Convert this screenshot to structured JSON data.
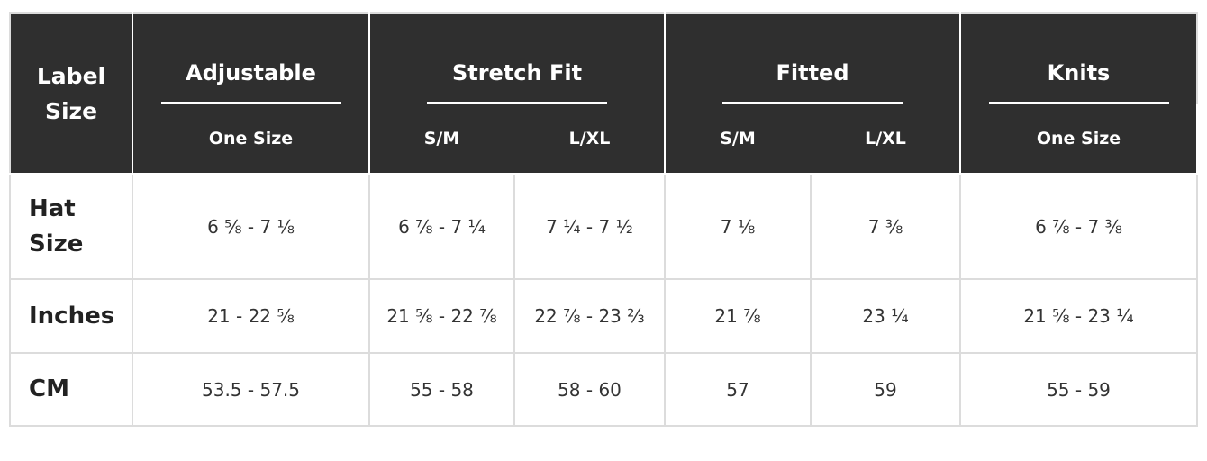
{
  "table": {
    "corner": "Label Size",
    "groups": [
      {
        "name": "Adjustable",
        "sizes": [
          "One Size"
        ]
      },
      {
        "name": "Stretch Fit",
        "sizes": [
          "S/M",
          "L/XL"
        ]
      },
      {
        "name": "Fitted",
        "sizes": [
          "S/M",
          "L/XL"
        ]
      },
      {
        "name": "Knits",
        "sizes": [
          "One Size"
        ]
      }
    ],
    "rows": [
      {
        "label": "Hat Size",
        "values": [
          "6 ⅝ - 7 ⅛",
          "6 ⅞ - 7 ¼",
          "7 ¼ - 7 ½",
          "7 ⅛",
          "7 ⅜",
          "6 ⅞ - 7 ⅜"
        ]
      },
      {
        "label": "Inches",
        "values": [
          "21 - 22 ⅝",
          "21 ⅝ - 22 ⅞",
          "22 ⅞ - 23 ⅔",
          "21 ⅞",
          "23 ¼",
          "21 ⅝ - 23 ¼"
        ]
      },
      {
        "label": "CM",
        "values": [
          "53.5 - 57.5",
          "55 - 58",
          "58 - 60",
          "57",
          "59",
          "55 - 59"
        ]
      }
    ]
  }
}
